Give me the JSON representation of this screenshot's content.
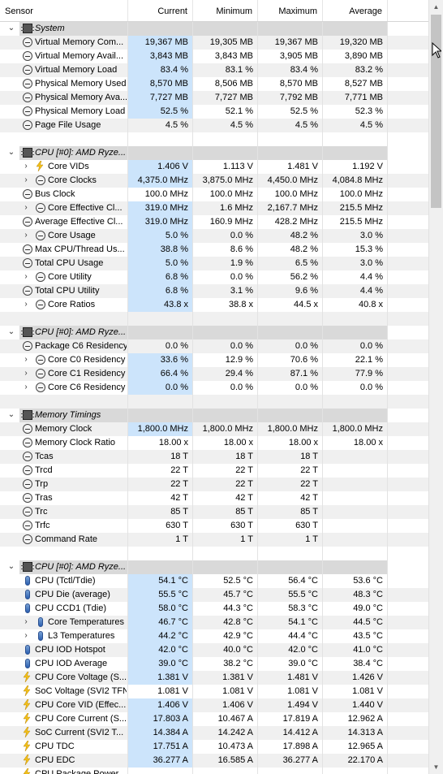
{
  "columns": [
    "Sensor",
    "Current",
    "Minimum",
    "Maximum",
    "Average"
  ],
  "rows": [
    {
      "type": "group",
      "label": "System",
      "icon": "chip-icon"
    },
    {
      "type": "item",
      "indent": 0,
      "label": "Virtual Memory Com...",
      "icon": "gauge-icon",
      "cur": "19,367 MB",
      "min": "19,305 MB",
      "max": "19,367 MB",
      "avg": "19,320 MB"
    },
    {
      "type": "item",
      "indent": 0,
      "label": "Virtual Memory Avail...",
      "icon": "gauge-icon",
      "cur": "3,843 MB",
      "min": "3,843 MB",
      "max": "3,905 MB",
      "avg": "3,890 MB"
    },
    {
      "type": "item",
      "indent": 0,
      "label": "Virtual Memory Load",
      "icon": "gauge-icon",
      "cur": "83.4 %",
      "min": "83.1 %",
      "max": "83.4 %",
      "avg": "83.2 %"
    },
    {
      "type": "item",
      "indent": 0,
      "label": "Physical Memory Used",
      "icon": "gauge-icon",
      "cur": "8,570 MB",
      "min": "8,506 MB",
      "max": "8,570 MB",
      "avg": "8,527 MB"
    },
    {
      "type": "item",
      "indent": 0,
      "label": "Physical Memory Ava...",
      "icon": "gauge-icon",
      "cur": "7,727 MB",
      "min": "7,727 MB",
      "max": "7,792 MB",
      "avg": "7,771 MB"
    },
    {
      "type": "item",
      "indent": 0,
      "label": "Physical Memory Load",
      "icon": "gauge-icon",
      "cur": "52.5 %",
      "min": "52.1 %",
      "max": "52.5 %",
      "avg": "52.3 %"
    },
    {
      "type": "item",
      "indent": 0,
      "label": "Page File Usage",
      "icon": "gauge-icon",
      "cur": "4.5 %",
      "nohl": true,
      "min": "4.5 %",
      "max": "4.5 %",
      "avg": "4.5 %"
    },
    {
      "type": "blank"
    },
    {
      "type": "group",
      "label": "CPU [#0]: AMD Ryze...",
      "icon": "chip-icon"
    },
    {
      "type": "item",
      "indent": 1,
      "label": "Core VIDs",
      "icon": "bolt-icon",
      "cur": "1.406 V",
      "min": "1.113 V",
      "max": "1.481 V",
      "avg": "1.192 V"
    },
    {
      "type": "item",
      "indent": 1,
      "label": "Core Clocks",
      "icon": "gauge-icon",
      "cur": "4,375.0 MHz",
      "min": "3,875.0 MHz",
      "max": "4,450.0 MHz",
      "avg": "4,084.8 MHz"
    },
    {
      "type": "item",
      "indent": 0,
      "label": "Bus Clock",
      "icon": "gauge-icon",
      "cur": "100.0 MHz",
      "nohl": true,
      "min": "100.0 MHz",
      "max": "100.0 MHz",
      "avg": "100.0 MHz"
    },
    {
      "type": "item",
      "indent": 1,
      "label": "Core Effective Cl...",
      "icon": "gauge-icon",
      "cur": "319.0 MHz",
      "min": "1.6 MHz",
      "max": "2,167.7 MHz",
      "avg": "215.5 MHz"
    },
    {
      "type": "item",
      "indent": 0,
      "label": "Average Effective Cl...",
      "icon": "gauge-icon",
      "cur": "319.0 MHz",
      "min": "160.9 MHz",
      "max": "428.2 MHz",
      "avg": "215.5 MHz"
    },
    {
      "type": "item",
      "indent": 1,
      "label": "Core Usage",
      "icon": "gauge-icon",
      "cur": "5.0 %",
      "min": "0.0 %",
      "max": "48.2 %",
      "avg": "3.0 %"
    },
    {
      "type": "item",
      "indent": 0,
      "label": "Max CPU/Thread Us...",
      "icon": "gauge-icon",
      "cur": "38.8 %",
      "min": "8.6 %",
      "max": "48.2 %",
      "avg": "15.3 %"
    },
    {
      "type": "item",
      "indent": 0,
      "label": "Total CPU Usage",
      "icon": "gauge-icon",
      "cur": "5.0 %",
      "min": "1.9 %",
      "max": "6.5 %",
      "avg": "3.0 %"
    },
    {
      "type": "item",
      "indent": 1,
      "label": "Core Utility",
      "icon": "gauge-icon",
      "cur": "6.8 %",
      "min": "0.0 %",
      "max": "56.2 %",
      "avg": "4.4 %"
    },
    {
      "type": "item",
      "indent": 0,
      "label": "Total CPU Utility",
      "icon": "gauge-icon",
      "cur": "6.8 %",
      "min": "3.1 %",
      "max": "9.6 %",
      "avg": "4.4 %"
    },
    {
      "type": "item",
      "indent": 1,
      "label": "Core Ratios",
      "icon": "gauge-icon",
      "cur": "43.8 x",
      "min": "38.8 x",
      "max": "44.5 x",
      "avg": "40.8 x"
    },
    {
      "type": "blank"
    },
    {
      "type": "group",
      "label": "CPU [#0]: AMD Ryze...",
      "icon": "chip-icon"
    },
    {
      "type": "item",
      "indent": 0,
      "label": "Package C6 Residency",
      "icon": "gauge-icon",
      "cur": "0.0 %",
      "nohl": true,
      "min": "0.0 %",
      "max": "0.0 %",
      "avg": "0.0 %"
    },
    {
      "type": "item",
      "indent": 1,
      "label": "Core C0 Residency",
      "icon": "gauge-icon",
      "cur": "33.6 %",
      "min": "12.9 %",
      "max": "70.6 %",
      "avg": "22.1 %"
    },
    {
      "type": "item",
      "indent": 1,
      "label": "Core C1 Residency",
      "icon": "gauge-icon",
      "cur": "66.4 %",
      "min": "29.4 %",
      "max": "87.1 %",
      "avg": "77.9 %"
    },
    {
      "type": "item",
      "indent": 1,
      "label": "Core C6 Residency",
      "icon": "gauge-icon",
      "cur": "0.0 %",
      "min": "0.0 %",
      "max": "0.0 %",
      "avg": "0.0 %"
    },
    {
      "type": "blank"
    },
    {
      "type": "group",
      "label": "Memory Timings",
      "icon": "chip-icon"
    },
    {
      "type": "item",
      "indent": 0,
      "label": "Memory Clock",
      "icon": "gauge-icon",
      "cur": "1,800.0 MHz",
      "min": "1,800.0 MHz",
      "max": "1,800.0 MHz",
      "avg": "1,800.0 MHz"
    },
    {
      "type": "item",
      "indent": 0,
      "label": "Memory Clock Ratio",
      "icon": "gauge-icon",
      "cur": "18.00 x",
      "nohl": true,
      "min": "18.00 x",
      "max": "18.00 x",
      "avg": "18.00 x"
    },
    {
      "type": "item",
      "indent": 0,
      "label": "Tcas",
      "icon": "gauge-icon",
      "cur": "18 T",
      "nohl": true,
      "min": "18 T",
      "max": "18 T",
      "avg": ""
    },
    {
      "type": "item",
      "indent": 0,
      "label": "Trcd",
      "icon": "gauge-icon",
      "cur": "22 T",
      "nohl": true,
      "min": "22 T",
      "max": "22 T",
      "avg": ""
    },
    {
      "type": "item",
      "indent": 0,
      "label": "Trp",
      "icon": "gauge-icon",
      "cur": "22 T",
      "nohl": true,
      "min": "22 T",
      "max": "22 T",
      "avg": ""
    },
    {
      "type": "item",
      "indent": 0,
      "label": "Tras",
      "icon": "gauge-icon",
      "cur": "42 T",
      "nohl": true,
      "min": "42 T",
      "max": "42 T",
      "avg": ""
    },
    {
      "type": "item",
      "indent": 0,
      "label": "Trc",
      "icon": "gauge-icon",
      "cur": "85 T",
      "nohl": true,
      "min": "85 T",
      "max": "85 T",
      "avg": ""
    },
    {
      "type": "item",
      "indent": 0,
      "label": "Trfc",
      "icon": "gauge-icon",
      "cur": "630 T",
      "nohl": true,
      "min": "630 T",
      "max": "630 T",
      "avg": ""
    },
    {
      "type": "item",
      "indent": 0,
      "label": "Command Rate",
      "icon": "gauge-icon",
      "cur": "1 T",
      "nohl": true,
      "min": "1 T",
      "max": "1 T",
      "avg": ""
    },
    {
      "type": "blank"
    },
    {
      "type": "group",
      "label": "CPU [#0]: AMD Ryze...",
      "icon": "chip-icon"
    },
    {
      "type": "item",
      "indent": 0,
      "label": "CPU (Tctl/Tdie)",
      "icon": "thermometer-icon",
      "cur": "54.1 °C",
      "min": "52.5 °C",
      "max": "56.4 °C",
      "avg": "53.6 °C"
    },
    {
      "type": "item",
      "indent": 0,
      "label": "CPU Die (average)",
      "icon": "thermometer-icon",
      "cur": "55.5 °C",
      "min": "45.7 °C",
      "max": "55.5 °C",
      "avg": "48.3 °C"
    },
    {
      "type": "item",
      "indent": 0,
      "label": "CPU CCD1 (Tdie)",
      "icon": "thermometer-icon",
      "cur": "58.0 °C",
      "min": "44.3 °C",
      "max": "58.3 °C",
      "avg": "49.0 °C"
    },
    {
      "type": "item",
      "indent": 1,
      "label": "Core Temperatures",
      "icon": "thermometer-icon",
      "cur": "46.7 °C",
      "min": "42.8 °C",
      "max": "54.1 °C",
      "avg": "44.5 °C"
    },
    {
      "type": "item",
      "indent": 1,
      "label": "L3 Temperatures",
      "icon": "thermometer-icon",
      "cur": "44.2 °C",
      "min": "42.9 °C",
      "max": "44.4 °C",
      "avg": "43.5 °C"
    },
    {
      "type": "item",
      "indent": 0,
      "label": "CPU IOD Hotspot",
      "icon": "thermometer-icon",
      "cur": "42.0 °C",
      "min": "40.0 °C",
      "max": "42.0 °C",
      "avg": "41.0 °C"
    },
    {
      "type": "item",
      "indent": 0,
      "label": "CPU IOD Average",
      "icon": "thermometer-icon",
      "cur": "39.0 °C",
      "min": "38.2 °C",
      "max": "39.0 °C",
      "avg": "38.4 °C"
    },
    {
      "type": "item",
      "indent": 0,
      "label": "CPU Core Voltage (S...",
      "icon": "bolt-icon",
      "cur": "1.381 V",
      "min": "1.381 V",
      "max": "1.481 V",
      "avg": "1.426 V"
    },
    {
      "type": "item",
      "indent": 0,
      "label": "SoC Voltage (SVI2 TFN)",
      "icon": "bolt-icon",
      "cur": "1.081 V",
      "nohl": true,
      "min": "1.081 V",
      "max": "1.081 V",
      "avg": "1.081 V"
    },
    {
      "type": "item",
      "indent": 0,
      "label": "CPU Core VID (Effec...",
      "icon": "bolt-icon",
      "cur": "1.406 V",
      "min": "1.406 V",
      "max": "1.494 V",
      "avg": "1.440 V"
    },
    {
      "type": "item",
      "indent": 0,
      "label": "CPU Core Current (S...",
      "icon": "bolt-icon",
      "cur": "17.803 A",
      "min": "10.467 A",
      "max": "17.819 A",
      "avg": "12.962 A"
    },
    {
      "type": "item",
      "indent": 0,
      "label": "SoC Current (SVI2 T...",
      "icon": "bolt-icon",
      "cur": "14.384 A",
      "min": "14.242 A",
      "max": "14.412 A",
      "avg": "14.313 A"
    },
    {
      "type": "item",
      "indent": 0,
      "label": "CPU TDC",
      "icon": "bolt-icon",
      "cur": "17.751 A",
      "min": "10.473 A",
      "max": "17.898 A",
      "avg": "12.965 A"
    },
    {
      "type": "item",
      "indent": 0,
      "label": "CPU EDC",
      "icon": "bolt-icon",
      "cur": "36.277 A",
      "min": "16.585 A",
      "max": "36.277 A",
      "avg": "22.170 A"
    },
    {
      "type": "item",
      "indent": 0,
      "label": "CPU Package Power",
      "icon": "bolt-icon",
      "cur": "",
      "min": "",
      "max": "",
      "avg": ""
    }
  ],
  "colors": {
    "highlight": "#cce4fb",
    "group_band": "#d9d9d9",
    "alt_row": "#f0f0f0",
    "bolt": "#f3c11b",
    "thermometer": "#2b5fb0"
  }
}
